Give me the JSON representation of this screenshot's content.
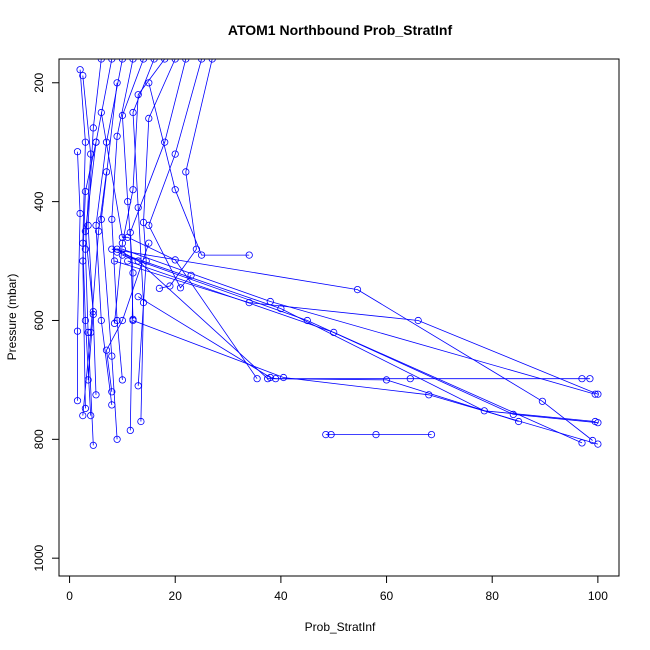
{
  "chart_data": {
    "type": "line",
    "title": "ATOM1 Northbound Prob_StratInf",
    "xlabel": "Prob_StratInf",
    "ylabel": "Pressure (mbar)",
    "xlim": [
      -2,
      104
    ],
    "ylim": [
      1030,
      160
    ],
    "y_reversed": true,
    "x_ticks": [
      0,
      20,
      40,
      60,
      80,
      100
    ],
    "y_ticks": [
      200,
      400,
      600,
      800,
      1000
    ],
    "grid": false,
    "legend": "none",
    "color": "#0000ff",
    "profiles": [
      {
        "points": [
          [
            2,
            178
          ],
          [
            3,
            300
          ],
          [
            2.5,
            470
          ],
          [
            3,
            600
          ],
          [
            4,
            760
          ]
        ]
      },
      {
        "points": [
          [
            2.5,
            188
          ],
          [
            4,
            320
          ],
          [
            3,
            480
          ],
          [
            3.5,
            620
          ],
          [
            4.5,
            810
          ]
        ]
      },
      {
        "points": [
          [
            1.5,
            316
          ],
          [
            2,
            420
          ],
          [
            1.5,
            618
          ],
          [
            1.5,
            735
          ]
        ]
      },
      {
        "points": [
          [
            10,
            160
          ],
          [
            7,
            300
          ],
          [
            5,
            440
          ],
          [
            6,
            600
          ],
          [
            8,
            742
          ]
        ]
      },
      {
        "points": [
          [
            12,
            160
          ],
          [
            9,
            290
          ],
          [
            8,
            430
          ],
          [
            9,
            600
          ],
          [
            10,
            700
          ]
        ]
      },
      {
        "points": [
          [
            14,
            160
          ],
          [
            10,
            255
          ],
          [
            11,
            400
          ],
          [
            12,
            520
          ],
          [
            11.5,
            785
          ]
        ]
      },
      {
        "points": [
          [
            16,
            160
          ],
          [
            12,
            250
          ],
          [
            13,
            410
          ],
          [
            14,
            570
          ],
          [
            13.5,
            770
          ]
        ]
      },
      {
        "points": [
          [
            6,
            160
          ],
          [
            4.5,
            276
          ],
          [
            3.5,
            440
          ],
          [
            4.5,
            590
          ],
          [
            5,
            725
          ]
        ]
      },
      {
        "points": [
          [
            8,
            160
          ],
          [
            5,
            300
          ],
          [
            3,
            383
          ],
          [
            2.5,
            500
          ],
          [
            3,
            748
          ]
        ]
      },
      {
        "points": [
          [
            18,
            160
          ],
          [
            13,
            220
          ],
          [
            12,
            380
          ],
          [
            10,
            470
          ],
          [
            8.5,
            605
          ]
        ]
      },
      {
        "points": [
          [
            20,
            160
          ],
          [
            15,
            260
          ],
          [
            14,
            435
          ],
          [
            14.5,
            500
          ],
          [
            13,
            710
          ]
        ]
      },
      {
        "points": [
          [
            22,
            160
          ],
          [
            18,
            300
          ],
          [
            11.5,
            452
          ],
          [
            12,
            598
          ]
        ]
      },
      {
        "points": [
          [
            25,
            160
          ],
          [
            20,
            320
          ],
          [
            15,
            440
          ],
          [
            21,
            545
          ],
          [
            23,
            524
          ]
        ]
      },
      {
        "points": [
          [
            27,
            160
          ],
          [
            22,
            350
          ],
          [
            24,
            480
          ],
          [
            19,
            542
          ],
          [
            17,
            546
          ]
        ]
      },
      {
        "points": [
          [
            15,
            200
          ],
          [
            20,
            380
          ],
          [
            25,
            490
          ],
          [
            34,
            490
          ]
        ]
      },
      {
        "points": [
          [
            6,
            250
          ],
          [
            10,
            460
          ],
          [
            11,
            460
          ],
          [
            20,
            498
          ],
          [
            35.5,
            698
          ]
        ]
      },
      {
        "points": [
          [
            9,
            480
          ],
          [
            13,
            500
          ],
          [
            37.5,
            698
          ],
          [
            64.5,
            698
          ],
          [
            97,
            698
          ],
          [
            98.5,
            698
          ]
        ]
      },
      {
        "points": [
          [
            10,
            480
          ],
          [
            38,
            568
          ],
          [
            99.5,
            724
          ]
        ]
      },
      {
        "points": [
          [
            8.5,
            500
          ],
          [
            34,
            570
          ],
          [
            66,
            600
          ],
          [
            100,
            724
          ]
        ]
      },
      {
        "points": [
          [
            9,
            485
          ],
          [
            40,
            580
          ],
          [
            78.5,
            752
          ],
          [
            99.5,
            770
          ]
        ]
      },
      {
        "points": [
          [
            10,
            490
          ],
          [
            45,
            600
          ],
          [
            84,
            758
          ],
          [
            100,
            772
          ]
        ]
      },
      {
        "points": [
          [
            8,
            480
          ],
          [
            54.5,
            548
          ],
          [
            89.5,
            736
          ],
          [
            99,
            802
          ]
        ]
      },
      {
        "points": [
          [
            11,
            500
          ],
          [
            50,
            620
          ],
          [
            97,
            806
          ]
        ]
      },
      {
        "points": [
          [
            12,
            600
          ],
          [
            40.5,
            696
          ],
          [
            68,
            725
          ],
          [
            100,
            808
          ]
        ]
      },
      {
        "points": [
          [
            13,
            560
          ],
          [
            38,
            696
          ],
          [
            39,
            698
          ],
          [
            60,
            700
          ],
          [
            85,
            770
          ]
        ]
      },
      {
        "points": [
          [
            48.5,
            792
          ],
          [
            49.5,
            792
          ],
          [
            58,
            792
          ],
          [
            68.5,
            792
          ]
        ]
      },
      {
        "points": [
          [
            15,
            470
          ],
          [
            10,
            600
          ],
          [
            7,
            650
          ],
          [
            8,
            720
          ]
        ]
      },
      {
        "points": [
          [
            5,
            300
          ],
          [
            3,
            450
          ],
          [
            4.5,
            585
          ],
          [
            3.5,
            700
          ]
        ]
      },
      {
        "points": [
          [
            7,
            350
          ],
          [
            5.5,
            450
          ],
          [
            4,
            620
          ],
          [
            2.5,
            760
          ]
        ]
      },
      {
        "points": [
          [
            9,
            200
          ],
          [
            6,
            430
          ],
          [
            8,
            660
          ],
          [
            9,
            800
          ]
        ]
      }
    ]
  }
}
